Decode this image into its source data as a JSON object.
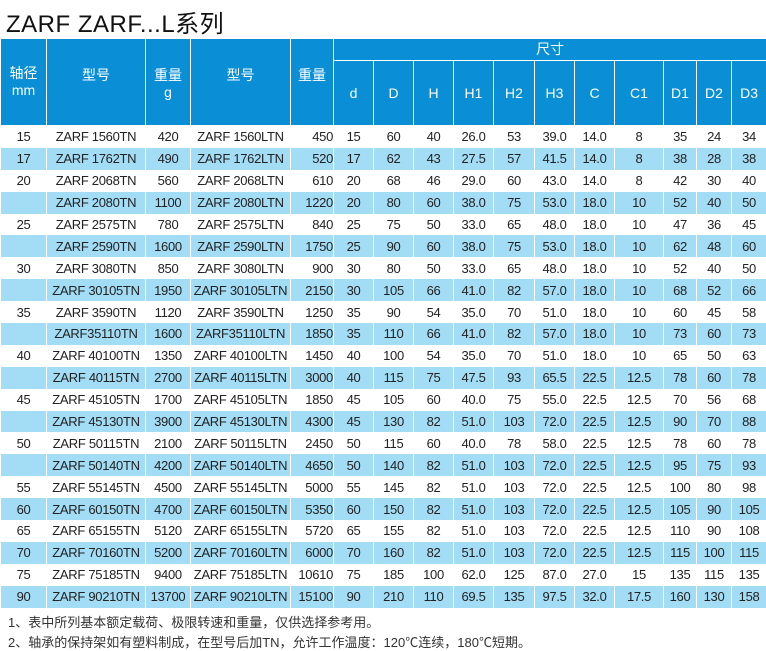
{
  "title": "ZARF  ZARF...L系列",
  "header": {
    "shaft": "轴径",
    "shaft_unit": "mm",
    "model": "型号",
    "weight": "重量",
    "weight_unit": "g",
    "model_l": "型号",
    "weight_l": "重量",
    "dims": "尺寸",
    "dim_cols": [
      "d",
      "D",
      "H",
      "H1",
      "H2",
      "H3",
      "C",
      "C1",
      "D1",
      "D2",
      "D3"
    ]
  },
  "rows": [
    [
      "15",
      "ZARF 1560TN",
      "420",
      "ZARF 1560LTN",
      "450",
      "15",
      "60",
      "40",
      "26.0",
      "53",
      "39.0",
      "14.0",
      "8",
      "35",
      "24",
      "34"
    ],
    [
      "17",
      "ZARF 1762TN",
      "490",
      "ZARF 1762LTN",
      "520",
      "17",
      "62",
      "43",
      "27.5",
      "57",
      "41.5",
      "14.0",
      "8",
      "38",
      "28",
      "38"
    ],
    [
      "20",
      "ZARF 2068TN",
      "560",
      "ZARF 2068LTN",
      "610",
      "20",
      "68",
      "46",
      "29.0",
      "60",
      "43.0",
      "14.0",
      "8",
      "42",
      "30",
      "40"
    ],
    [
      "",
      "ZARF 2080TN",
      "1100",
      "ZARF 2080LTN",
      "1220",
      "20",
      "80",
      "60",
      "38.0",
      "75",
      "53.0",
      "18.0",
      "10",
      "52",
      "40",
      "50"
    ],
    [
      "25",
      "ZARF 2575TN",
      "780",
      "ZARF 2575LTN",
      "840",
      "25",
      "75",
      "50",
      "33.0",
      "65",
      "48.0",
      "18.0",
      "10",
      "47",
      "36",
      "45"
    ],
    [
      "",
      "ZARF 2590TN",
      "1600",
      "ZARF 2590LTN",
      "1750",
      "25",
      "90",
      "60",
      "38.0",
      "75",
      "53.0",
      "18.0",
      "10",
      "62",
      "48",
      "60"
    ],
    [
      "30",
      "ZARF 3080TN",
      "850",
      "ZARF 3080LTN",
      "900",
      "30",
      "80",
      "50",
      "33.0",
      "65",
      "48.0",
      "18.0",
      "10",
      "52",
      "40",
      "50"
    ],
    [
      "",
      "ZARF 30105TN",
      "1950",
      "ZARF 30105LTN",
      "2150",
      "30",
      "105",
      "66",
      "41.0",
      "82",
      "57.0",
      "18.0",
      "10",
      "68",
      "52",
      "66"
    ],
    [
      "35",
      "ZARF 3590TN",
      "1120",
      "ZARF 3590LTN",
      "1250",
      "35",
      "90",
      "54",
      "35.0",
      "70",
      "51.0",
      "18.0",
      "10",
      "60",
      "45",
      "58"
    ],
    [
      "",
      "ZARF35110TN",
      "1600",
      "ZARF35110LTN",
      "1850",
      "35",
      "110",
      "66",
      "41.0",
      "82",
      "57.0",
      "18.0",
      "10",
      "73",
      "60",
      "73"
    ],
    [
      "40",
      "ZARF 40100TN",
      "1350",
      "ZARF 40100LTN",
      "1450",
      "40",
      "100",
      "54",
      "35.0",
      "70",
      "51.0",
      "18.0",
      "10",
      "65",
      "50",
      "63"
    ],
    [
      "",
      "ZARF 40115TN",
      "2700",
      "ZARF 40115LTN",
      "3000",
      "40",
      "115",
      "75",
      "47.5",
      "93",
      "65.5",
      "22.5",
      "12.5",
      "78",
      "60",
      "78"
    ],
    [
      "45",
      "ZARF 45105TN",
      "1700",
      "ZARF 45105LTN",
      "1850",
      "45",
      "105",
      "60",
      "40.0",
      "75",
      "55.0",
      "22.5",
      "12.5",
      "70",
      "56",
      "68"
    ],
    [
      "",
      "ZARF 45130TN",
      "3900",
      "ZARF 45130LTN",
      "4300",
      "45",
      "130",
      "82",
      "51.0",
      "103",
      "72.0",
      "22.5",
      "12.5",
      "90",
      "70",
      "88"
    ],
    [
      "50",
      "ZARF 50115TN",
      "2100",
      "ZARF 50115LTN",
      "2450",
      "50",
      "115",
      "60",
      "40.0",
      "78",
      "58.0",
      "22.5",
      "12.5",
      "78",
      "60",
      "78"
    ],
    [
      "",
      "ZARF 50140TN",
      "4200",
      "ZARF 50140LTN",
      "4650",
      "50",
      "140",
      "82",
      "51.0",
      "103",
      "72.0",
      "22.5",
      "12.5",
      "95",
      "75",
      "93"
    ],
    [
      "55",
      "ZARF 55145TN",
      "4500",
      "ZARF 55145LTN",
      "5000",
      "55",
      "145",
      "82",
      "51.0",
      "103",
      "72.0",
      "22.5",
      "12.5",
      "100",
      "80",
      "98"
    ],
    [
      "60",
      "ZARF 60150TN",
      "4700",
      "ZARF 60150LTN",
      "5350",
      "60",
      "150",
      "82",
      "51.0",
      "103",
      "72.0",
      "22.5",
      "12.5",
      "105",
      "90",
      "105"
    ],
    [
      "65",
      "ZARF 65155TN",
      "5120",
      "ZARF 65155LTN",
      "5720",
      "65",
      "155",
      "82",
      "51.0",
      "103",
      "72.0",
      "22.5",
      "12.5",
      "110",
      "90",
      "108"
    ],
    [
      "70",
      "ZARF 70160TN",
      "5200",
      "ZARF 70160LTN",
      "6000",
      "70",
      "160",
      "82",
      "51.0",
      "103",
      "72.0",
      "22.5",
      "12.5",
      "115",
      "100",
      "115"
    ],
    [
      "75",
      "ZARF 75185TN",
      "9400",
      "ZARF 75185LTN",
      "10610",
      "75",
      "185",
      "100",
      "62.0",
      "125",
      "87.0",
      "27.0",
      "15",
      "135",
      "115",
      "135"
    ],
    [
      "90",
      "ZARF 90210TN",
      "13700",
      "ZARF 90210LTN",
      "15100",
      "90",
      "210",
      "110",
      "69.5",
      "135",
      "97.5",
      "32.0",
      "17.5",
      "160",
      "130",
      "158"
    ]
  ],
  "notes": [
    "1、表中所列基本额定载荷、极限转速和重量，仅供选择参考用。",
    "2、轴承的保持架如有塑料制成，在型号后加TN，允许工作温度：120℃连续，180℃短期。"
  ],
  "colors": {
    "header": "#0a8ed6",
    "alt_row": "#a3dcf5"
  }
}
